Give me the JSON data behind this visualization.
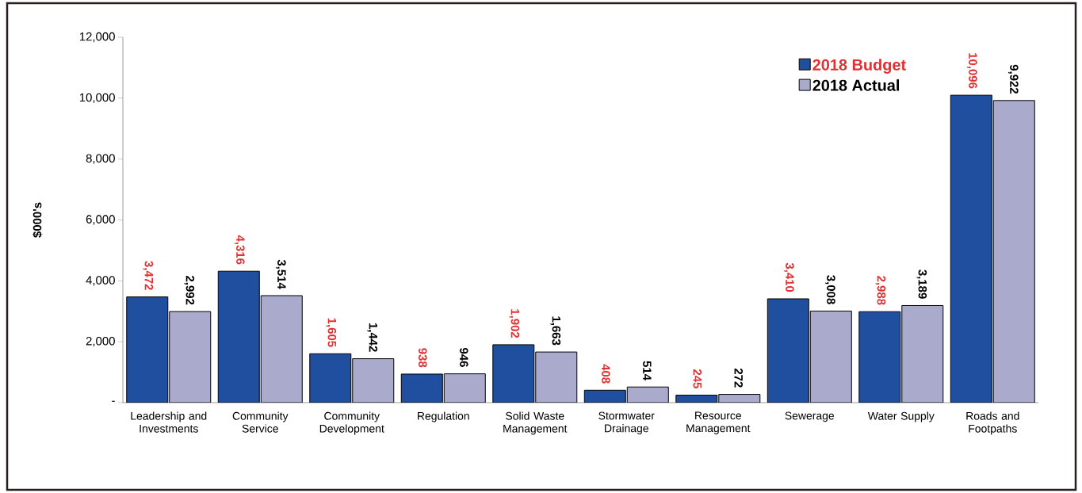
{
  "chart_data": {
    "type": "bar",
    "ylabel": "$000's",
    "categories": [
      "Leadership and Investments",
      "Community Service",
      "Community Development",
      "Regulation",
      "Solid Waste Management",
      "Stormwater Drainage",
      "Resource Management",
      "Sewerage",
      "Water Supply",
      "Roads and Footpaths"
    ],
    "series": [
      {
        "name": "2018 Budget",
        "color": "#1f4f9e",
        "values": [
          3472,
          4316,
          1605,
          938,
          1902,
          408,
          245,
          3410,
          2988,
          10096
        ],
        "value_labels": [
          "3,472",
          "4,316",
          "1,605",
          "938",
          "1,902",
          "408",
          "245",
          "3,410",
          "2,988",
          "10,096"
        ]
      },
      {
        "name": "2018 Actual",
        "color": "#aaaacc",
        "values": [
          2992,
          3514,
          1442,
          946,
          1663,
          514,
          272,
          3008,
          3189,
          9922
        ],
        "value_labels": [
          "2,992",
          "3,514",
          "1,442",
          "946",
          "1,663",
          "514",
          "272",
          "3,008",
          "3,189",
          "9,922"
        ]
      }
    ],
    "ylim": [
      0,
      12000
    ],
    "yticks": [
      {
        "value": 0,
        "label": "-"
      },
      {
        "value": 2000,
        "label": "2,000"
      },
      {
        "value": 4000,
        "label": "4,000"
      },
      {
        "value": 6000,
        "label": "6,000"
      },
      {
        "value": 8000,
        "label": "8,000"
      },
      {
        "value": 10000,
        "label": "10,000"
      },
      {
        "value": 12000,
        "label": "12,000"
      }
    ],
    "legend": "top right",
    "grid": false
  }
}
